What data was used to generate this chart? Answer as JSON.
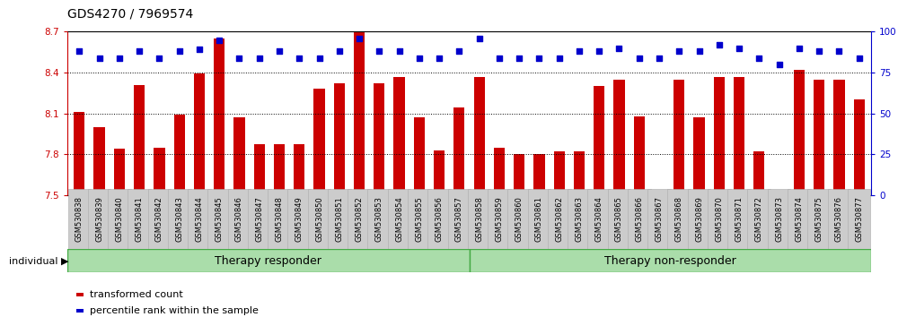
{
  "title": "GDS4270 / 7969574",
  "categories": [
    "GSM530838",
    "GSM530839",
    "GSM530840",
    "GSM530841",
    "GSM530842",
    "GSM530843",
    "GSM530844",
    "GSM530845",
    "GSM530846",
    "GSM530847",
    "GSM530848",
    "GSM530849",
    "GSM530850",
    "GSM530851",
    "GSM530852",
    "GSM530853",
    "GSM530854",
    "GSM530855",
    "GSM530856",
    "GSM530857",
    "GSM530858",
    "GSM530859",
    "GSM530860",
    "GSM530861",
    "GSM530862",
    "GSM530863",
    "GSM530864",
    "GSM530865",
    "GSM530866",
    "GSM530867",
    "GSM530868",
    "GSM530869",
    "GSM530870",
    "GSM530871",
    "GSM530872",
    "GSM530873",
    "GSM530874",
    "GSM530875",
    "GSM530876",
    "GSM530877"
  ],
  "bar_values": [
    8.11,
    8.0,
    7.84,
    8.31,
    7.85,
    8.09,
    8.39,
    8.65,
    8.07,
    7.87,
    7.87,
    7.87,
    8.28,
    8.32,
    8.7,
    8.32,
    8.37,
    8.07,
    7.83,
    8.14,
    8.37,
    7.85,
    7.8,
    7.8,
    7.82,
    7.82,
    8.3,
    8.35,
    8.08,
    7.51,
    8.35,
    8.07,
    8.37,
    8.37,
    7.82,
    7.52,
    8.42,
    8.35,
    8.35,
    8.2
  ],
  "percentile_values": [
    88,
    84,
    84,
    88,
    84,
    88,
    89,
    95,
    84,
    84,
    88,
    84,
    84,
    88,
    96,
    88,
    88,
    84,
    84,
    88,
    96,
    84,
    84,
    84,
    84,
    88,
    88,
    90,
    84,
    84,
    88,
    88,
    92,
    90,
    84,
    80,
    90,
    88,
    88,
    84
  ],
  "ymin": 7.5,
  "ylim_left": [
    7.5,
    8.7
  ],
  "ylim_right": [
    0,
    100
  ],
  "yticks_left": [
    7.5,
    7.8,
    8.1,
    8.4,
    8.7
  ],
  "yticks_right": [
    0,
    25,
    50,
    75,
    100
  ],
  "bar_color": "#CC0000",
  "dot_color": "#0000CC",
  "background_color": "#ffffff",
  "tick_label_bg": "#cccccc",
  "tick_label_edge": "#aaaaaa",
  "group1_label": "Therapy responder",
  "group2_label": "Therapy non-responder",
  "group1_count": 20,
  "group_fill_color": "#aaddaa",
  "group_edge_color": "#44aa44",
  "legend_label_bar": "transformed count",
  "legend_label_dot": "percentile rank within the sample",
  "individual_label": "individual",
  "title_fontsize": 10,
  "tick_fontsize": 7.5,
  "xtick_fontsize": 6.0,
  "group_label_fontsize": 9,
  "legend_fontsize": 8
}
